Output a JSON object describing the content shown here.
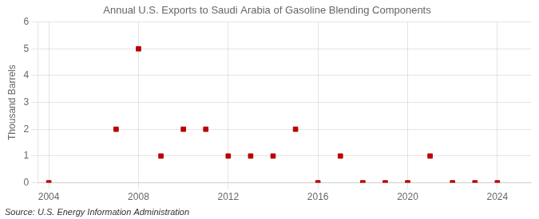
{
  "chart_data": {
    "type": "scatter",
    "title": "Annual U.S. Exports to Saudi Arabia of Gasoline Blending Components",
    "ylabel": "Thousand Barrels",
    "annotations": [
      "Source: U.S. Energy Information Administration"
    ],
    "x": [
      2004,
      2007,
      2008,
      2009,
      2010,
      2011,
      2012,
      2013,
      2014,
      2015,
      2016,
      2017,
      2018,
      2019,
      2020,
      2021,
      2022,
      2023,
      2024
    ],
    "values": [
      0,
      2,
      5,
      1,
      2,
      2,
      1,
      1,
      1,
      2,
      0,
      1,
      0,
      0,
      0,
      1,
      0,
      0,
      0
    ],
    "color": "#bb0000",
    "marker": "square",
    "xlim": [
      2003.5,
      2025.5
    ],
    "xticks": [
      2004,
      2008,
      2012,
      2016,
      2020,
      2024
    ],
    "ylim": [
      0,
      6
    ],
    "yticks": [
      0,
      1,
      2,
      3,
      4,
      5,
      6
    ],
    "grid": true
  }
}
